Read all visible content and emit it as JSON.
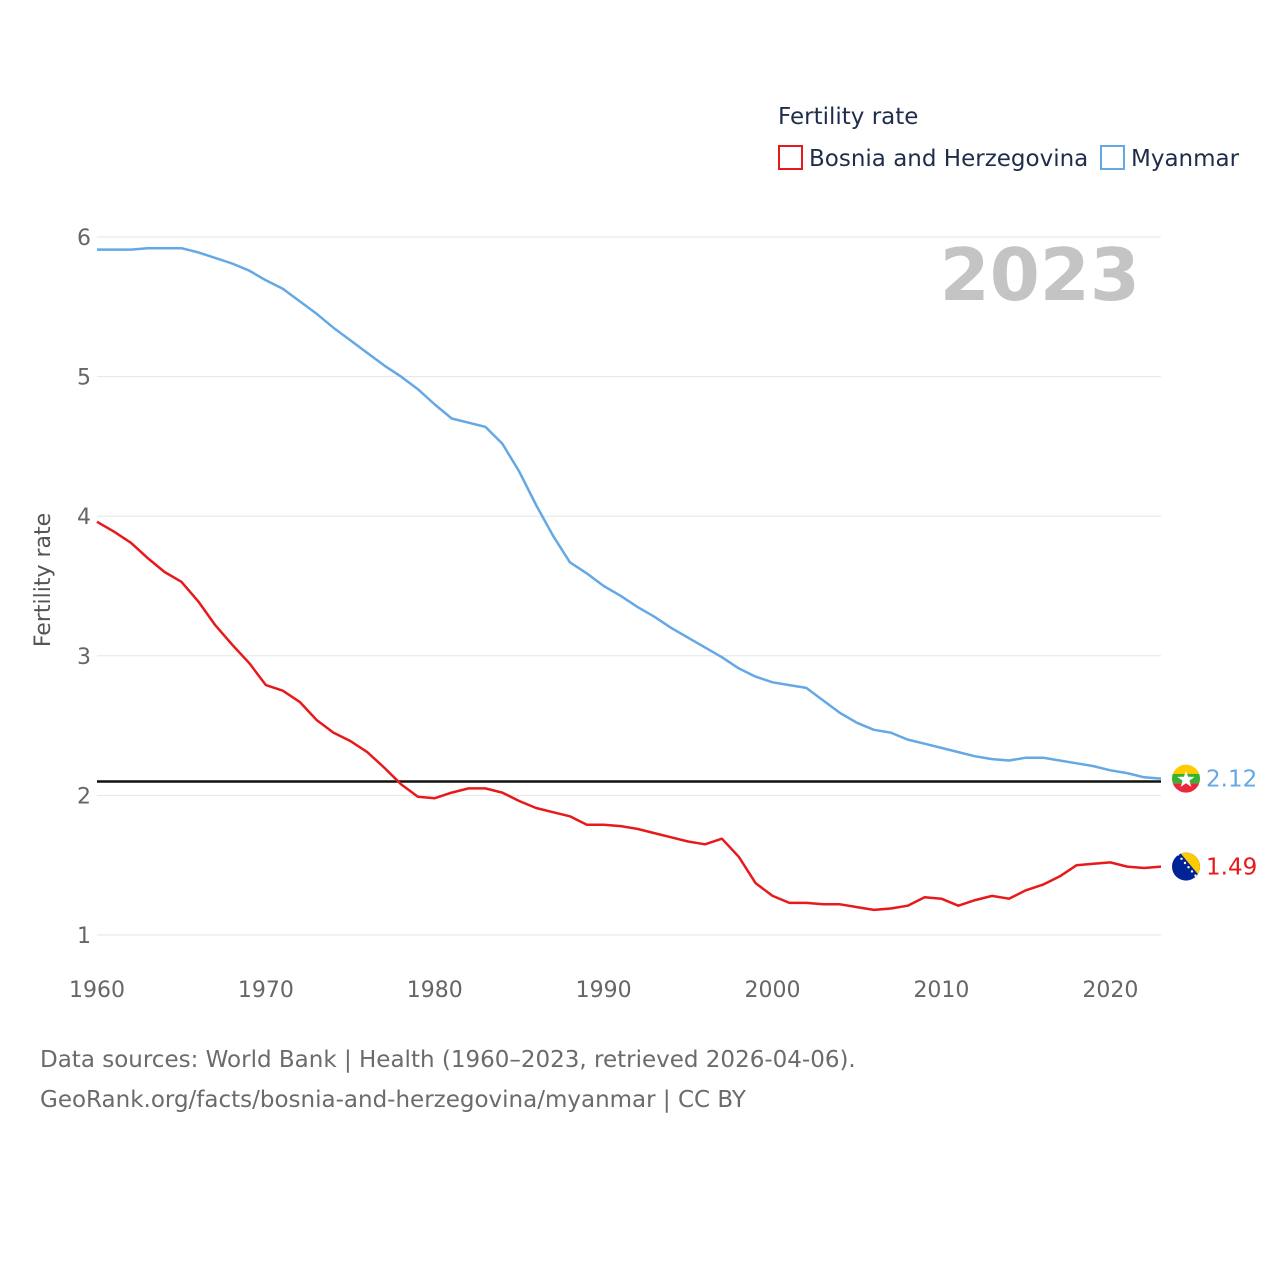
{
  "chart_data": {
    "type": "line",
    "title": "Fertility rate",
    "ylabel": "Fertility rate",
    "xlabel": "",
    "xlim": [
      1960,
      2023
    ],
    "ylim": [
      0.8,
      6.2
    ],
    "x_ticks": [
      1960,
      1970,
      1980,
      1990,
      2000,
      2010,
      2020
    ],
    "y_ticks": [
      1,
      2,
      3,
      4,
      5,
      6
    ],
    "year_badge": "2023",
    "reference_line": 2.1,
    "x": [
      1960,
      1961,
      1962,
      1963,
      1964,
      1965,
      1966,
      1967,
      1968,
      1969,
      1970,
      1971,
      1972,
      1973,
      1974,
      1975,
      1976,
      1977,
      1978,
      1979,
      1980,
      1981,
      1982,
      1983,
      1984,
      1985,
      1986,
      1987,
      1988,
      1989,
      1990,
      1991,
      1992,
      1993,
      1994,
      1995,
      1996,
      1997,
      1998,
      1999,
      2000,
      2001,
      2002,
      2003,
      2004,
      2005,
      2006,
      2007,
      2008,
      2009,
      2010,
      2011,
      2012,
      2013,
      2014,
      2015,
      2016,
      2017,
      2018,
      2019,
      2020,
      2021,
      2022,
      2023
    ],
    "series": [
      {
        "name": "Bosnia and Herzegovina",
        "color": "#e8191b",
        "end_label": "1.49",
        "flag": "bosnia-flag",
        "values": [
          3.96,
          3.89,
          3.81,
          3.7,
          3.6,
          3.53,
          3.39,
          3.22,
          3.08,
          2.95,
          2.79,
          2.75,
          2.67,
          2.54,
          2.45,
          2.39,
          2.31,
          2.2,
          2.08,
          1.99,
          1.98,
          2.02,
          2.05,
          2.05,
          2.02,
          1.96,
          1.91,
          1.88,
          1.85,
          1.79,
          1.79,
          1.78,
          1.76,
          1.73,
          1.7,
          1.67,
          1.65,
          1.69,
          1.56,
          1.37,
          1.28,
          1.23,
          1.23,
          1.22,
          1.22,
          1.2,
          1.18,
          1.19,
          1.21,
          1.27,
          1.26,
          1.21,
          1.25,
          1.28,
          1.26,
          1.32,
          1.36,
          1.42,
          1.5,
          1.51,
          1.52,
          1.49,
          1.48,
          1.49
        ]
      },
      {
        "name": "Myanmar",
        "color": "#64a8e6",
        "end_label": "2.12",
        "flag": "myanmar-flag",
        "values": [
          5.91,
          5.91,
          5.91,
          5.92,
          5.92,
          5.92,
          5.89,
          5.85,
          5.81,
          5.76,
          5.69,
          5.63,
          5.54,
          5.45,
          5.35,
          5.26,
          5.17,
          5.08,
          5.0,
          4.91,
          4.8,
          4.7,
          4.67,
          4.64,
          4.52,
          4.32,
          4.08,
          3.86,
          3.67,
          3.59,
          3.5,
          3.43,
          3.35,
          3.28,
          3.2,
          3.13,
          3.06,
          2.99,
          2.91,
          2.85,
          2.81,
          2.79,
          2.77,
          2.68,
          2.59,
          2.52,
          2.47,
          2.45,
          2.4,
          2.37,
          2.34,
          2.31,
          2.28,
          2.26,
          2.25,
          2.27,
          2.27,
          2.25,
          2.23,
          2.21,
          2.18,
          2.16,
          2.13,
          2.12
        ]
      }
    ]
  },
  "footer": {
    "line1": "Data sources: World Bank | Health (1960–2023, retrieved 2026-04-06).",
    "line2": "GeoRank.org/facts/bosnia-and-herzegovina/myanmar | CC BY"
  }
}
